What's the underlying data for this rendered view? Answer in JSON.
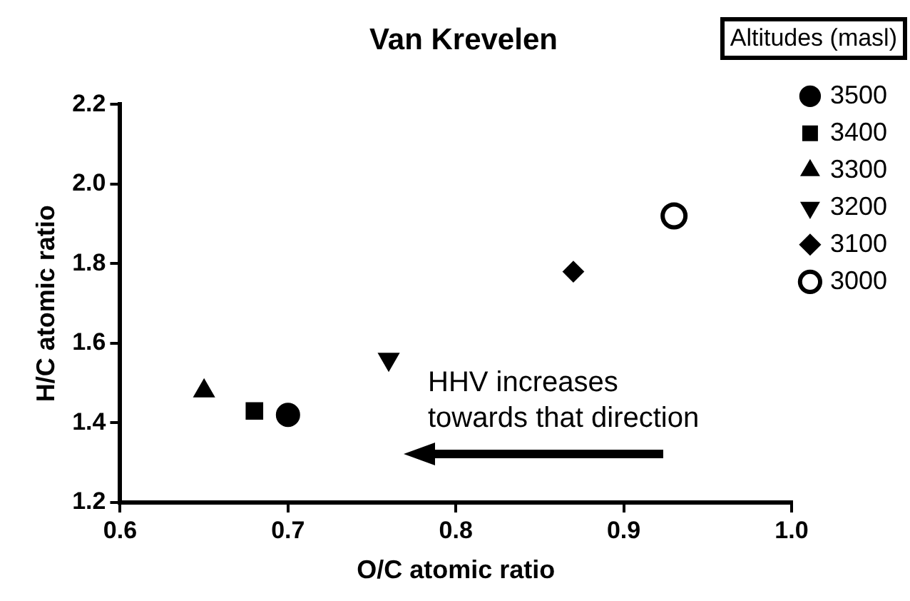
{
  "chart_data": {
    "type": "scatter",
    "title": "Van Krevelen",
    "xlabel": "O/C atomic ratio",
    "ylabel": "H/C atomic ratio",
    "legend_title": "Altitudes (masl)",
    "xlim": [
      0.6,
      1.0
    ],
    "xticks": [
      {
        "value": 0.6,
        "label": "0.6"
      },
      {
        "value": 0.7,
        "label": "0.7"
      },
      {
        "value": 0.8,
        "label": "0.8"
      },
      {
        "value": 0.9,
        "label": "0.9"
      },
      {
        "value": 1.0,
        "label": "1.0"
      }
    ],
    "ylim": [
      1.2,
      2.2
    ],
    "yticks": [
      {
        "value": 1.2,
        "label": "1.2"
      },
      {
        "value": 1.4,
        "label": "1.4"
      },
      {
        "value": 1.6,
        "label": "1.6"
      },
      {
        "value": 1.8,
        "label": "1.8"
      },
      {
        "value": 2.0,
        "label": "2.0"
      },
      {
        "value": 2.2,
        "label": "2.2"
      }
    ],
    "grid": false,
    "legend": "right",
    "annotations": [
      "HHV increases towards that direction"
    ],
    "series": [
      {
        "name": "3500",
        "color": "#000000",
        "marker": "circle",
        "x": [
          0.7
        ],
        "values": [
          1.42
        ]
      },
      {
        "name": "3400",
        "color": "#000000",
        "marker": "square",
        "x": [
          0.68
        ],
        "values": [
          1.43
        ]
      },
      {
        "name": "3300",
        "color": "#000000",
        "marker": "triangle",
        "x": [
          0.65
        ],
        "values": [
          1.48
        ]
      },
      {
        "name": "3200",
        "color": "#000000",
        "marker": "triangle-down",
        "x": [
          0.76
        ],
        "values": [
          1.56
        ]
      },
      {
        "name": "3100",
        "color": "#000000",
        "marker": "diamond",
        "x": [
          0.87
        ],
        "values": [
          1.78
        ]
      },
      {
        "name": "3000",
        "color": "#000000",
        "marker": "circle-open",
        "x": [
          0.93
        ],
        "values": [
          1.92
        ]
      }
    ]
  }
}
